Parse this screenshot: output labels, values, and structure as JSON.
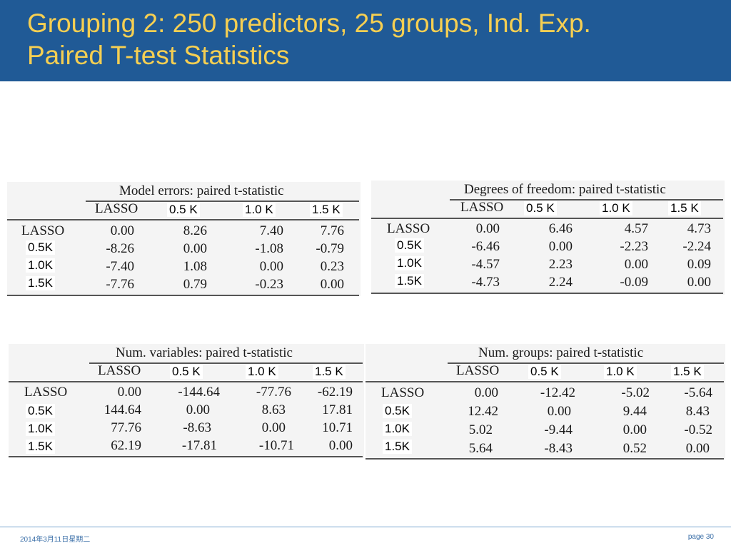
{
  "slide": {
    "title_line1": "Grouping 2: 250 predictors, 25 groups, Ind. Exp.",
    "title_line2": "Paired T-test Statistics"
  },
  "tables": [
    {
      "id": "model-errors",
      "title": "Model errors: paired t-statistic",
      "col_header": "LASSO",
      "overlay_cols": [
        "0.5 K",
        "1.0 K",
        "1.5 K"
      ],
      "row_header": "LASSO",
      "overlay_rows": [
        "0.5K",
        "1.0K",
        "1.5K"
      ],
      "rows": [
        [
          "0.00",
          "8.26",
          "7.40",
          "7.76"
        ],
        [
          "-8.26",
          "0.00",
          "-1.08",
          "-0.79"
        ],
        [
          "-7.40",
          "1.08",
          "0.00",
          "0.23"
        ],
        [
          "-7.76",
          "0.79",
          "-0.23",
          "0.00"
        ]
      ]
    },
    {
      "id": "degrees-of-freedom",
      "title": "Degrees of freedom: paired t-statistic",
      "col_header": "LASSO",
      "overlay_cols": [
        "0.5 K",
        "1.0 K",
        "1.5 K"
      ],
      "row_header": "LASSO",
      "overlay_rows": [
        "0.5K",
        "1.0K",
        "1.5K"
      ],
      "rows": [
        [
          "0.00",
          "6.46",
          "4.57",
          "4.73"
        ],
        [
          "-6.46",
          "0.00",
          "-2.23",
          "-2.24"
        ],
        [
          "-4.57",
          "2.23",
          "0.00",
          "0.09"
        ],
        [
          "-4.73",
          "2.24",
          "-0.09",
          "0.00"
        ]
      ]
    },
    {
      "id": "num-variables",
      "title": "Num. variables: paired t-statistic",
      "col_header": "LASSO",
      "overlay_cols": [
        "0.5 K",
        "1.0 K",
        "1.5 K"
      ],
      "row_header": "LASSO",
      "overlay_rows": [
        "0.5K",
        "1.0K",
        "1.5K"
      ],
      "rows": [
        [
          "0.00",
          "-144.64",
          "-77.76",
          "-62.19"
        ],
        [
          "144.64",
          "0.00",
          "8.63",
          "17.81"
        ],
        [
          "77.76",
          "-8.63",
          "0.00",
          "10.71"
        ],
        [
          "62.19",
          "-17.81",
          "-10.71",
          "0.00"
        ]
      ]
    },
    {
      "id": "num-groups",
      "title": "Num. groups: paired t-statistic",
      "col_header": "LASSO",
      "overlay_cols": [
        "0.5 K",
        "1.0 K",
        "1.5 K"
      ],
      "row_header": "LASSO",
      "overlay_rows": [
        "0.5K",
        "1.0K",
        "1.5K"
      ],
      "rows": [
        [
          "0.00",
          "-12.42",
          "-5.02",
          "-5.64"
        ],
        [
          "12.42",
          "0.00",
          "9.44",
          "8.43"
        ],
        [
          "5.02",
          "-9.44",
          "0.00",
          "-0.52"
        ],
        [
          "5.64",
          "-8.43",
          "0.52",
          "0.00"
        ]
      ]
    }
  ],
  "footer": {
    "date": "2014年3月11日星期二",
    "page": "page 30"
  },
  "colors": {
    "header_bg": "#205a96",
    "title_text": "#f6cf52",
    "footer_text": "#3b6fa8"
  }
}
